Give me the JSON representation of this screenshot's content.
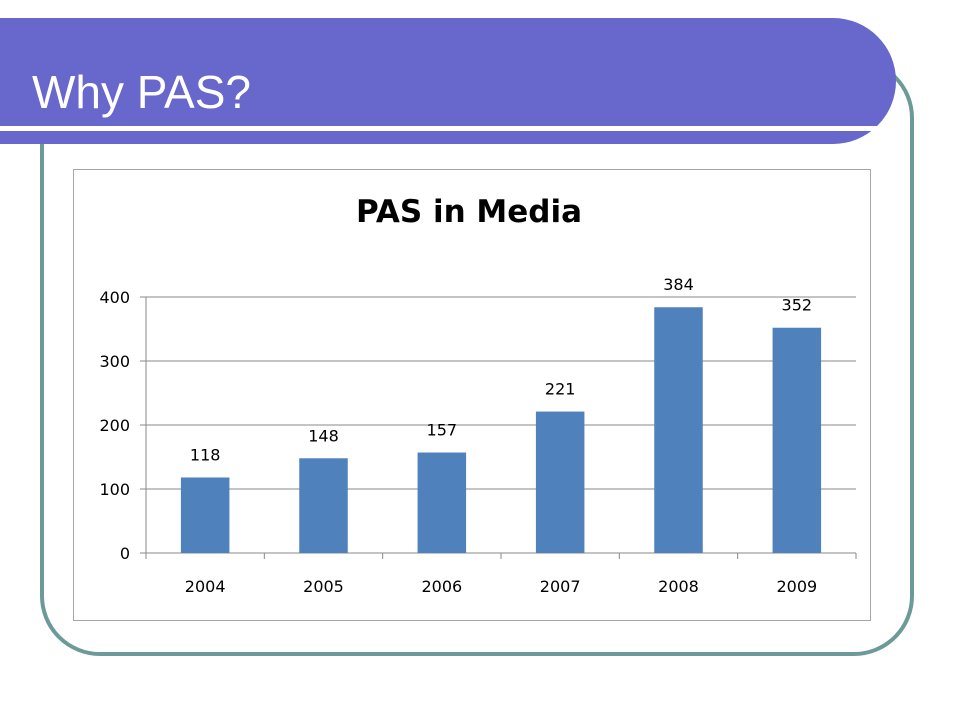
{
  "slide": {
    "title": "Why PAS?",
    "colors": {
      "title_bar": "#6767cc",
      "frame_border": "#6c9a98",
      "bar_fill": "#4f81bd",
      "gridline": "#888888"
    }
  },
  "chart_data": {
    "type": "bar",
    "title": "PAS in Media",
    "xlabel": "",
    "ylabel": "",
    "categories": [
      "2004",
      "2005",
      "2006",
      "2007",
      "2008",
      "2009"
    ],
    "values": [
      118,
      148,
      157,
      221,
      384,
      352
    ],
    "data_labels": [
      "118",
      "148",
      "157",
      "221",
      "384",
      "352"
    ],
    "ylim": [
      0,
      400
    ],
    "yticks": [
      0,
      100,
      200,
      300,
      400
    ],
    "ytick_labels": [
      "0",
      "100",
      "200",
      "300",
      "400"
    ],
    "grid": true,
    "legend": "none"
  }
}
